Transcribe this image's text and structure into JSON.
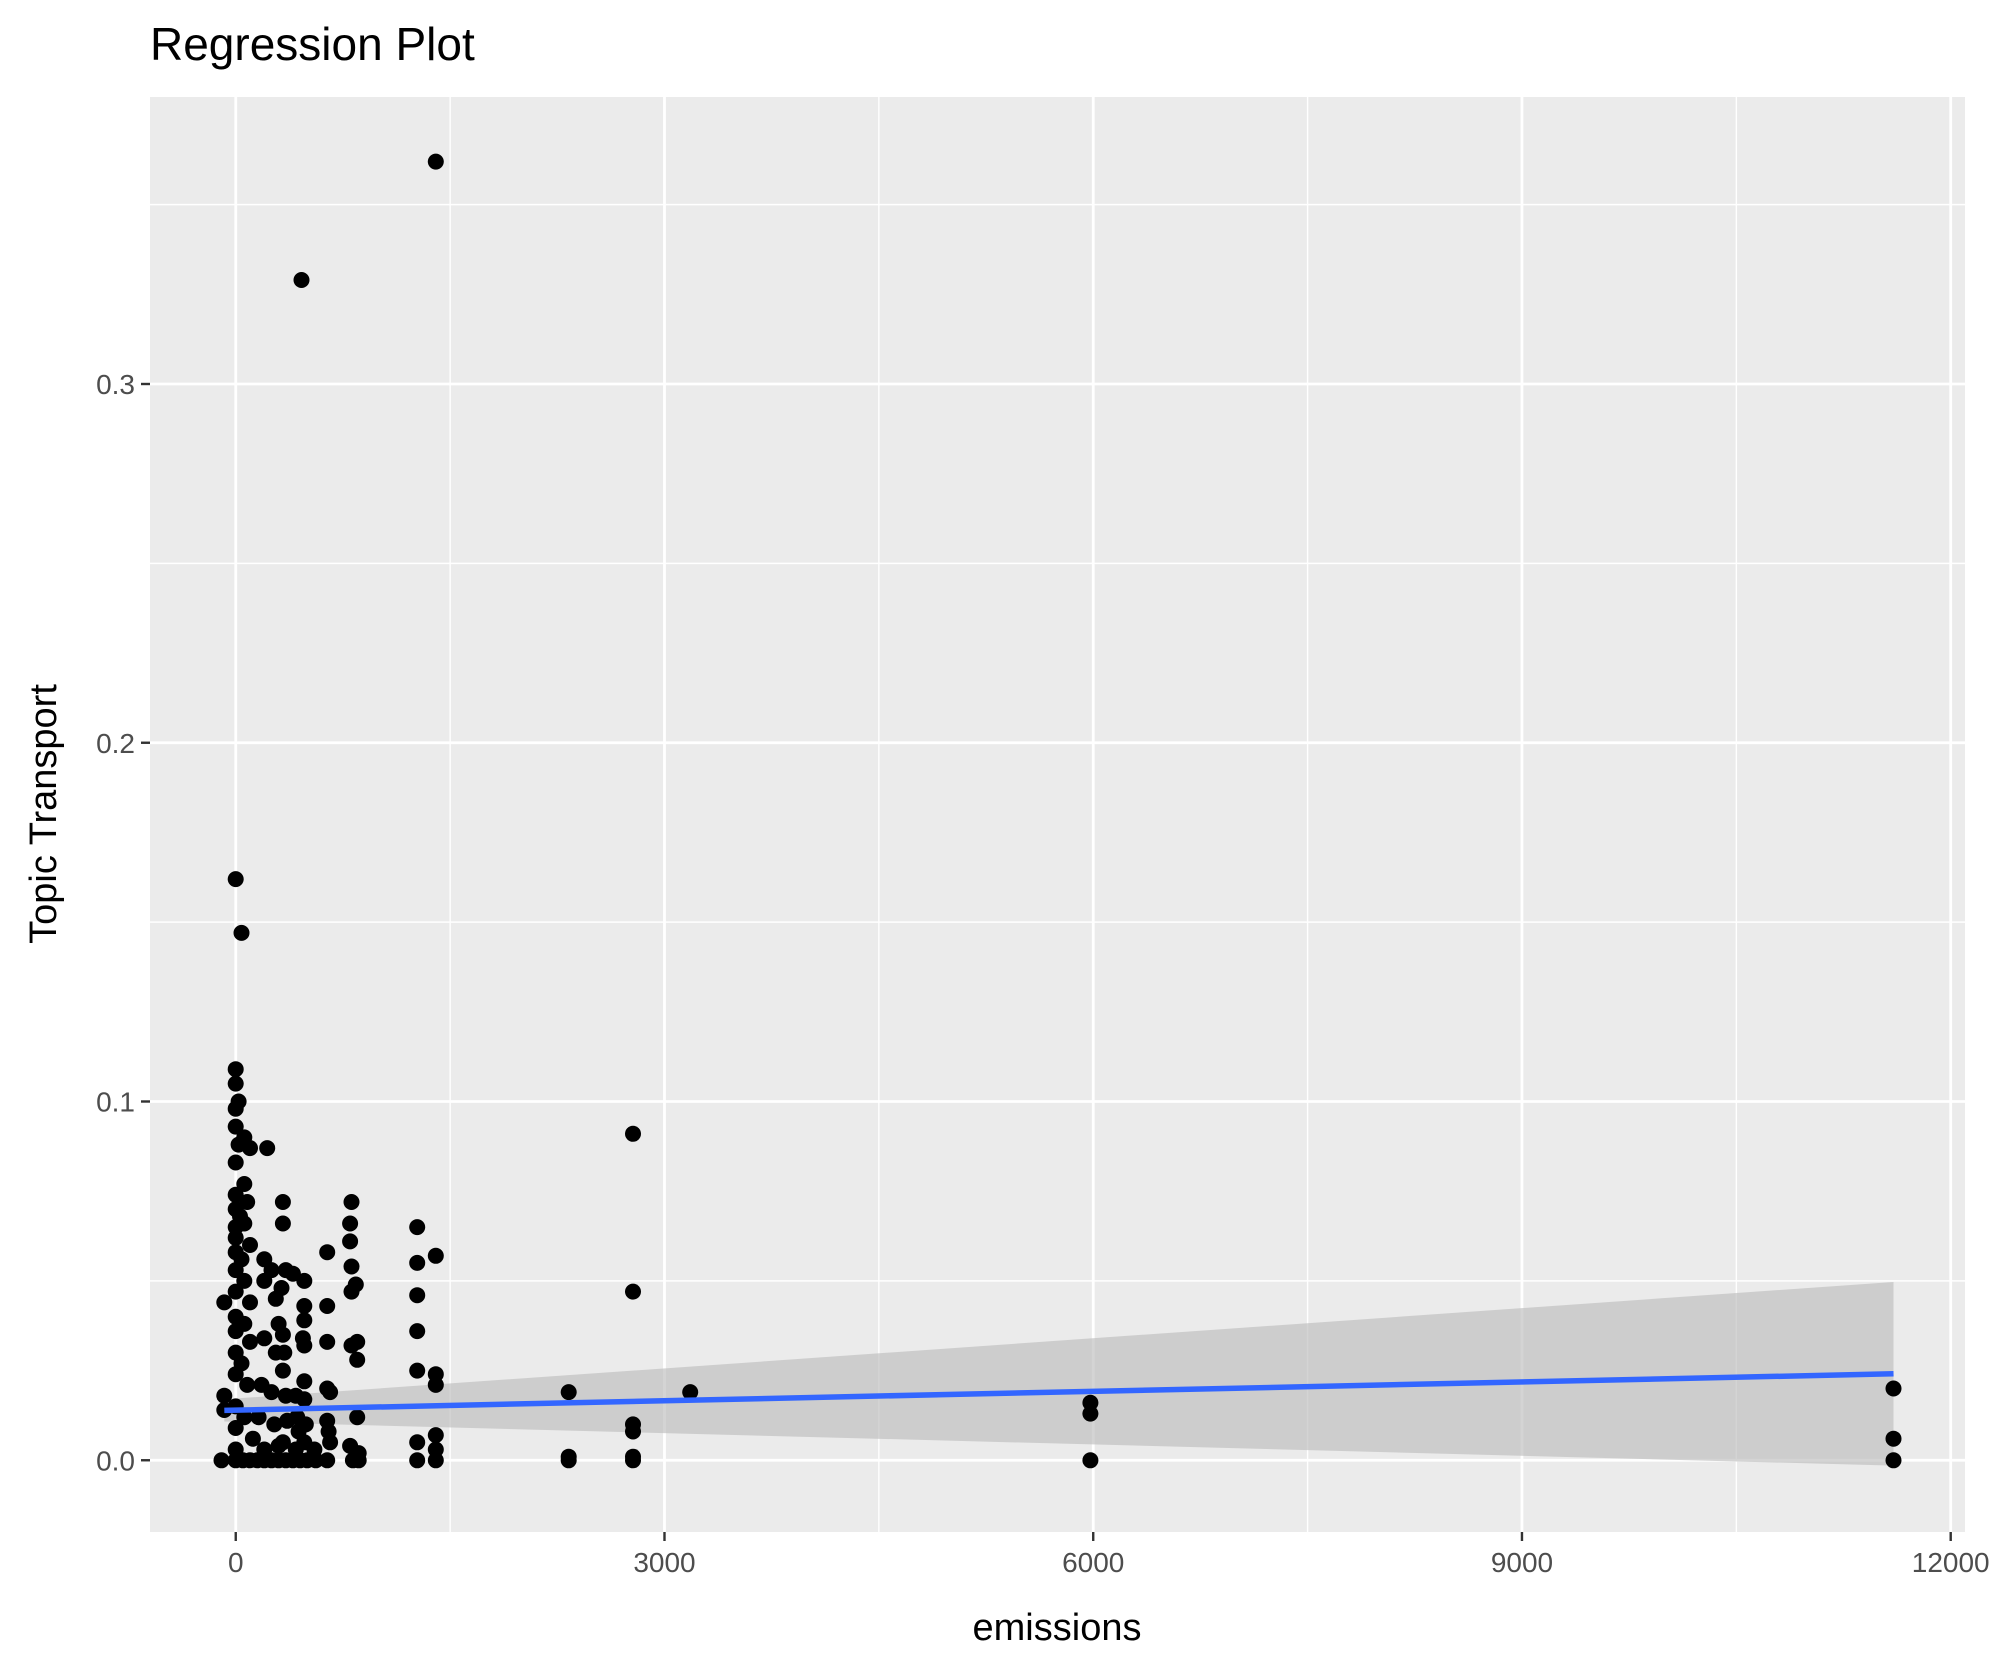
{
  "chart_data": {
    "type": "scatter",
    "title": "Regression Plot",
    "xlabel": "emissions",
    "ylabel": "Topic Transport",
    "xlim": [
      -600,
      12100
    ],
    "ylim": [
      -0.02,
      0.38
    ],
    "x_ticks": [
      0,
      3000,
      6000,
      9000,
      12000
    ],
    "x_tick_labels": [
      "0",
      "3000",
      "6000",
      "9000",
      "12000"
    ],
    "y_ticks": [
      0.0,
      0.1,
      0.2,
      0.3
    ],
    "y_tick_labels": [
      "0.0",
      "0.1",
      "0.2",
      "0.3"
    ],
    "grid": true,
    "legend": "none",
    "colors": {
      "panel": "#ebebeb",
      "grid": "#ffffff",
      "points": "#000000",
      "regression_line": "#3366ff",
      "confidence_band": "#bdbdbd"
    },
    "regression": {
      "x_range": [
        -80,
        11600
      ],
      "line": [
        [
          -80,
          0.0139
        ],
        [
          11600,
          0.0241
        ]
      ],
      "band_lower": [
        [
          -80,
          0.0108
        ],
        [
          11600,
          -0.0015
        ]
      ],
      "band_upper": [
        [
          -80,
          0.017
        ],
        [
          11600,
          0.0497
        ]
      ]
    },
    "points": [
      [
        1400,
        0.362
      ],
      [
        460,
        0.329
      ],
      [
        0,
        0.162
      ],
      [
        40,
        0.147
      ],
      [
        0,
        0.109
      ],
      [
        0,
        0.105
      ],
      [
        20,
        0.1
      ],
      [
        0,
        0.098
      ],
      [
        0,
        0.093
      ],
      [
        60,
        0.09
      ],
      [
        100,
        0.087
      ],
      [
        220,
        0.087
      ],
      [
        20,
        0.088
      ],
      [
        0,
        0.083
      ],
      [
        60,
        0.077
      ],
      [
        0,
        0.074
      ],
      [
        80,
        0.072
      ],
      [
        0,
        0.07
      ],
      [
        30,
        0.068
      ],
      [
        0,
        0.065
      ],
      [
        60,
        0.066
      ],
      [
        0,
        0.062
      ],
      [
        100,
        0.06
      ],
      [
        0,
        0.058
      ],
      [
        40,
        0.056
      ],
      [
        0,
        0.053
      ],
      [
        60,
        0.05
      ],
      [
        0,
        0.047
      ],
      [
        100,
        0.044
      ],
      [
        -80,
        0.044
      ],
      [
        0,
        0.04
      ],
      [
        60,
        0.038
      ],
      [
        0,
        0.036
      ],
      [
        100,
        0.033
      ],
      [
        0,
        0.03
      ],
      [
        40,
        0.027
      ],
      [
        0,
        0.024
      ],
      [
        80,
        0.021
      ],
      [
        -80,
        0.018
      ],
      [
        0,
        0.015
      ],
      [
        -80,
        0.014
      ],
      [
        60,
        0.012
      ],
      [
        0,
        0.009
      ],
      [
        120,
        0.006
      ],
      [
        0,
        0.003
      ],
      [
        -100,
        0.0
      ],
      [
        0,
        0.0
      ],
      [
        50,
        0.0
      ],
      [
        100,
        0.0
      ],
      [
        150,
        0.0
      ],
      [
        200,
        0.056
      ],
      [
        200,
        0.05
      ],
      [
        200,
        0.034
      ],
      [
        180,
        0.021
      ],
      [
        160,
        0.012
      ],
      [
        200,
        0.003
      ],
      [
        250,
        0.053
      ],
      [
        280,
        0.045
      ],
      [
        300,
        0.038
      ],
      [
        280,
        0.03
      ],
      [
        250,
        0.019
      ],
      [
        270,
        0.01
      ],
      [
        300,
        0.004
      ],
      [
        250,
        0.0
      ],
      [
        300,
        0.0
      ],
      [
        200,
        0.0
      ],
      [
        330,
        0.072
      ],
      [
        330,
        0.066
      ],
      [
        350,
        0.053
      ],
      [
        320,
        0.048
      ],
      [
        330,
        0.035
      ],
      [
        340,
        0.03
      ],
      [
        330,
        0.025
      ],
      [
        350,
        0.018
      ],
      [
        360,
        0.011
      ],
      [
        330,
        0.005
      ],
      [
        350,
        0.0
      ],
      [
        400,
        0.0
      ],
      [
        400,
        0.052
      ],
      [
        420,
        0.018
      ],
      [
        430,
        0.012
      ],
      [
        440,
        0.008
      ],
      [
        420,
        0.003
      ],
      [
        450,
        0.0
      ],
      [
        480,
        0.05
      ],
      [
        480,
        0.043
      ],
      [
        480,
        0.039
      ],
      [
        470,
        0.034
      ],
      [
        480,
        0.032
      ],
      [
        480,
        0.022
      ],
      [
        480,
        0.017
      ],
      [
        490,
        0.01
      ],
      [
        480,
        0.005
      ],
      [
        500,
        0.0
      ],
      [
        550,
        0.003
      ],
      [
        560,
        0.0
      ],
      [
        640,
        0.058
      ],
      [
        640,
        0.043
      ],
      [
        640,
        0.033
      ],
      [
        640,
        0.02
      ],
      [
        660,
        0.019
      ],
      [
        640,
        0.011
      ],
      [
        650,
        0.008
      ],
      [
        660,
        0.005
      ],
      [
        640,
        0.0
      ],
      [
        810,
        0.072
      ],
      [
        800,
        0.066
      ],
      [
        800,
        0.061
      ],
      [
        810,
        0.054
      ],
      [
        840,
        0.049
      ],
      [
        810,
        0.047
      ],
      [
        810,
        0.032
      ],
      [
        850,
        0.033
      ],
      [
        850,
        0.028
      ],
      [
        850,
        0.012
      ],
      [
        800,
        0.004
      ],
      [
        860,
        0.002
      ],
      [
        820,
        0.0
      ],
      [
        860,
        0.0
      ],
      [
        1270,
        0.065
      ],
      [
        1270,
        0.055
      ],
      [
        1270,
        0.046
      ],
      [
        1270,
        0.036
      ],
      [
        1270,
        0.025
      ],
      [
        1270,
        0.005
      ],
      [
        1270,
        0.0
      ],
      [
        1400,
        0.057
      ],
      [
        1400,
        0.024
      ],
      [
        1400,
        0.021
      ],
      [
        1400,
        0.007
      ],
      [
        1400,
        0.003
      ],
      [
        1400,
        0.0
      ],
      [
        2330,
        0.019
      ],
      [
        2330,
        0.001
      ],
      [
        2330,
        0.0
      ],
      [
        2780,
        0.091
      ],
      [
        2780,
        0.047
      ],
      [
        2780,
        0.01
      ],
      [
        2780,
        0.008
      ],
      [
        2780,
        0.001
      ],
      [
        2780,
        0.0
      ],
      [
        3180,
        0.019
      ],
      [
        5980,
        0.016
      ],
      [
        5980,
        0.013
      ],
      [
        5980,
        0.0
      ],
      [
        11600,
        0.02
      ],
      [
        11600,
        0.006
      ],
      [
        11600,
        0.0
      ]
    ]
  }
}
